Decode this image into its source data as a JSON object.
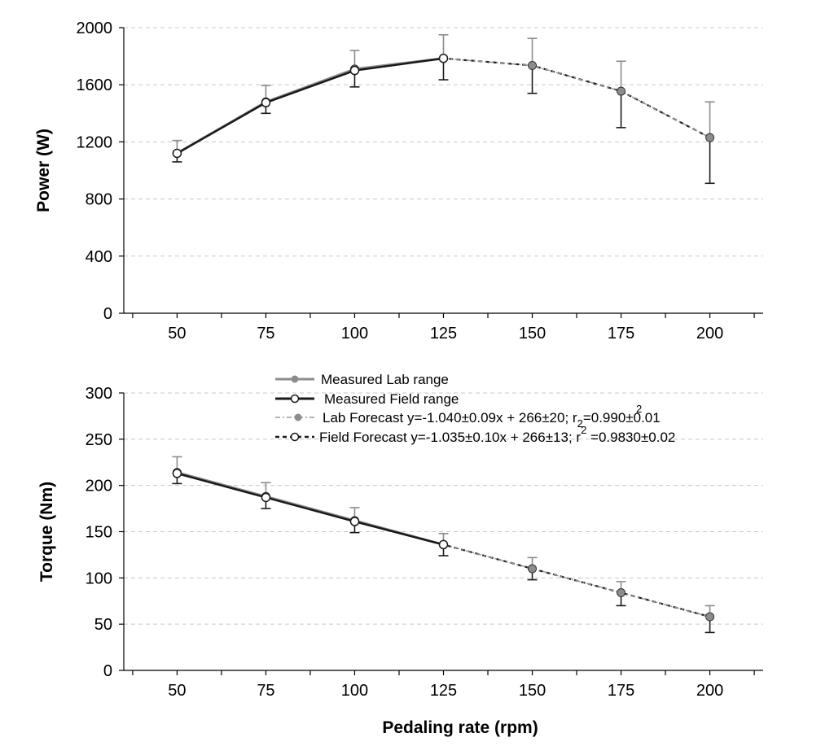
{
  "chart_data": [
    {
      "type": "line",
      "title": "",
      "ylabel": "Power (W)",
      "xlabel": "",
      "x": [
        50,
        75,
        100,
        125,
        150,
        175,
        200
      ],
      "xticks": [
        "50",
        "75",
        "100",
        "125",
        "150",
        "175",
        "200"
      ],
      "xlim": [
        35,
        215
      ],
      "ylim": [
        0,
        2000
      ],
      "yticks": [
        "0",
        "400",
        "800",
        "1200",
        "1600",
        "2000"
      ],
      "ytick_values": [
        0,
        400,
        800,
        1200,
        1600,
        2000
      ],
      "grid": "horizontal dashed",
      "series": [
        {
          "key": "lab_measured",
          "x": [
            50,
            75,
            100,
            125
          ],
          "y": [
            1120,
            1480,
            1710,
            1785
          ],
          "err_up": [
            90,
            115,
            130,
            165
          ],
          "err_down": [
            0,
            0,
            0,
            0
          ],
          "color": "#8c8c8c"
        },
        {
          "key": "field_measured",
          "x": [
            50,
            75,
            100,
            125
          ],
          "y": [
            1120,
            1475,
            1700,
            1785
          ],
          "err_up": [
            0,
            0,
            0,
            0
          ],
          "err_down": [
            60,
            75,
            115,
            150
          ],
          "color": "#1a1a1a"
        },
        {
          "key": "lab_forecast",
          "x": [
            125,
            150,
            175,
            200
          ],
          "y": [
            1785,
            1735,
            1555,
            1230
          ],
          "err_up": [
            0,
            190,
            210,
            250
          ],
          "err_down": [
            0,
            0,
            0,
            0
          ],
          "color": "#8c8c8c"
        },
        {
          "key": "field_forecast",
          "x": [
            100,
            125,
            150,
            175,
            200
          ],
          "y": [
            1700,
            1785,
            1735,
            1555,
            1230
          ],
          "err_up": [
            0,
            0,
            0,
            0,
            0
          ],
          "err_down": [
            0,
            0,
            195,
            255,
            320
          ],
          "color": "#1a1a1a"
        }
      ]
    },
    {
      "type": "line",
      "title": "",
      "ylabel": "Torque (Nm)",
      "xlabel": "Pedaling rate (rpm)",
      "x": [
        50,
        75,
        100,
        125,
        150,
        175,
        200
      ],
      "xticks": [
        "50",
        "75",
        "100",
        "125",
        "150",
        "175",
        "200"
      ],
      "xlim": [
        35,
        215
      ],
      "ylim": [
        0,
        300
      ],
      "yticks": [
        "0",
        "50",
        "100",
        "150",
        "200",
        "250",
        "300"
      ],
      "ytick_values": [
        0,
        50,
        100,
        150,
        200,
        250,
        300
      ],
      "grid": "horizontal dashed",
      "series": [
        {
          "key": "lab_measured",
          "x": [
            50,
            75,
            100,
            125
          ],
          "y": [
            214,
            188,
            162,
            136
          ],
          "err_up": [
            17,
            15,
            14,
            12
          ],
          "err_down": [
            0,
            0,
            0,
            0
          ],
          "color": "#8c8c8c"
        },
        {
          "key": "field_measured",
          "x": [
            50,
            75,
            100,
            125
          ],
          "y": [
            213,
            187,
            161,
            136
          ],
          "err_up": [
            0,
            0,
            0,
            0
          ],
          "err_down": [
            11,
            12,
            12,
            12
          ],
          "color": "#1a1a1a"
        },
        {
          "key": "lab_forecast",
          "x": [
            125,
            150,
            175,
            200
          ],
          "y": [
            136,
            110,
            84,
            58
          ],
          "err_up": [
            0,
            12,
            12,
            12
          ],
          "err_down": [
            0,
            0,
            0,
            0
          ],
          "color": "#8c8c8c"
        },
        {
          "key": "field_forecast",
          "x": [
            100,
            125,
            150,
            175,
            200
          ],
          "y": [
            161,
            136,
            110,
            84,
            58
          ],
          "err_up": [
            0,
            0,
            0,
            0,
            0
          ],
          "err_down": [
            0,
            0,
            12,
            14,
            17
          ],
          "color": "#1a1a1a"
        }
      ]
    }
  ],
  "legend": {
    "placement": "top-center of lower chart",
    "entries": [
      {
        "key": "lab_measured",
        "label": "Measured Lab range"
      },
      {
        "key": "field_measured",
        "label": "Measured Field range"
      },
      {
        "key": "lab_forecast",
        "label_main": "Lab Forecast y=-1.040±0.09x + 266±20; r",
        "label_sub": "2",
        "label_sup": "2",
        "label_tail": "=0.990±0.01"
      },
      {
        "key": "field_forecast",
        "label_main": "Field Forecast y=-1.035±0.10x + 266±13; r",
        "label_sup": "2",
        "label_tail": " =0.9830±0.02"
      }
    ]
  }
}
